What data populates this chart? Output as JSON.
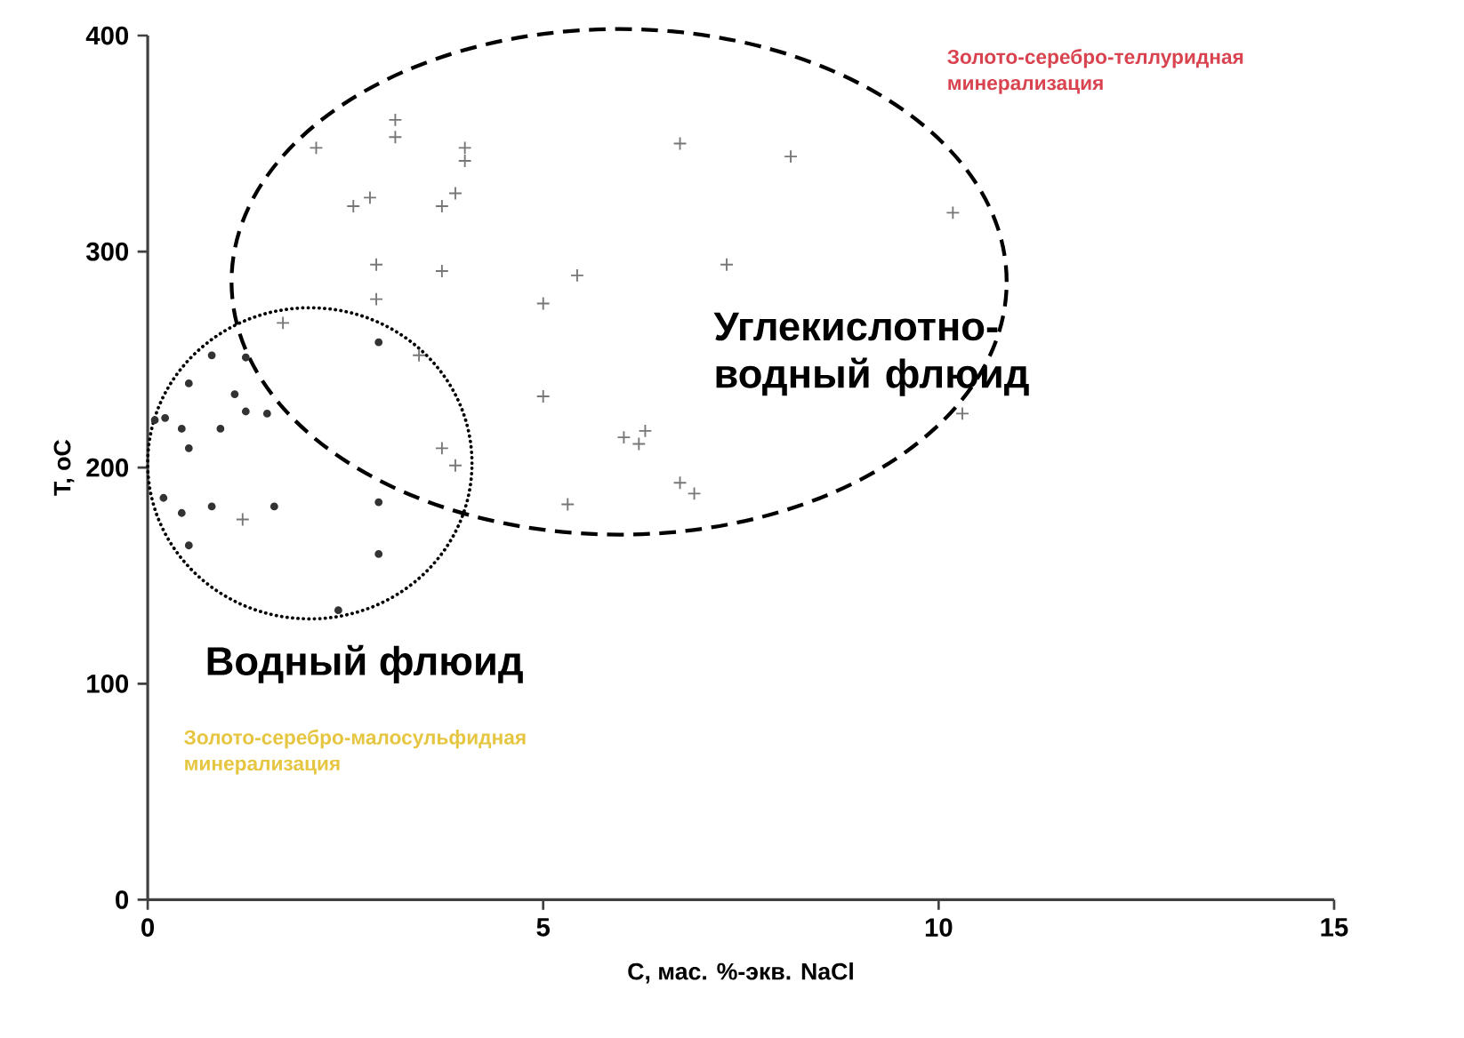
{
  "chart_data": {
    "type": "scatter",
    "xlabel": "C, мас. %-экв. NaCl",
    "ylabel": "T, oC",
    "xlim": [
      0,
      15
    ],
    "xticks": [
      0,
      5,
      10,
      15
    ],
    "ylim": [
      0,
      400
    ],
    "yticks": [
      0,
      100,
      200,
      300,
      400
    ],
    "series": [
      {
        "color": "#777777",
        "marker": "cross",
        "x": [
          2.13,
          3.13,
          3.13,
          2.6,
          2.81,
          4.01,
          4.01,
          3.89,
          3.72,
          6.73,
          8.13,
          10.18,
          2.89,
          2.89,
          3.72,
          5.43,
          7.32,
          5.0,
          1.71,
          5.0,
          6.02,
          6.21,
          6.29,
          6.73,
          6.91,
          5.31,
          3.72,
          3.89,
          1.2,
          3.43,
          10.3
        ],
        "values": [
          348,
          361,
          353,
          321,
          325,
          348,
          342,
          327,
          321,
          350,
          344,
          318,
          294,
          278,
          291,
          289,
          294,
          276,
          267,
          233,
          214,
          211,
          217,
          193,
          188,
          183,
          209,
          201,
          176,
          252,
          225
        ]
      },
      {
        "color": "#333333",
        "marker": "circle",
        "x": [
          0.81,
          1.24,
          0.52,
          1.1,
          1.24,
          1.51,
          0.92,
          0.43,
          0.22,
          0.09,
          0.52,
          2.92,
          0.2,
          0.43,
          0.81,
          1.6,
          2.92,
          2.92,
          0.52,
          2.41
        ],
        "values": [
          252,
          251,
          239,
          234,
          226,
          225,
          218,
          218,
          223,
          222,
          209,
          258,
          186,
          179,
          182,
          182,
          184,
          160,
          164,
          134
        ]
      }
    ],
    "annotations": [
      "Углекислотно-водный флюид",
      "Водный флюид",
      "Золото-серебро-теллуридная минерализация",
      "Золото-серебро-малосульфидная минерализация"
    ]
  }
}
